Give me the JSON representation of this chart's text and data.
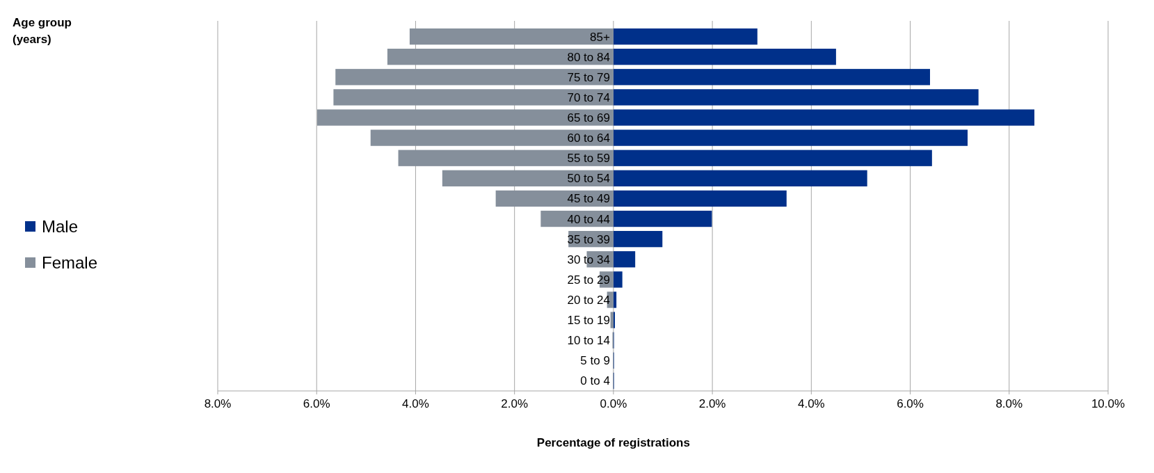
{
  "chart_data": {
    "type": "bar",
    "orientation": "horizontal",
    "stacked": true,
    "annotations": [
      "Age group (years)"
    ],
    "xlabel": "Percentage of registrations",
    "categories": [
      "85+",
      "80 to 84",
      "75 to 79",
      "70 to 74",
      "65 to 69",
      "60 to 64",
      "55 to 59",
      "50 to 54",
      "45 to 49",
      "40 to 44",
      "35 to 39",
      "30 to 34",
      "25 to 29",
      "20 to 24",
      "15 to 19",
      "10 to 14",
      "5 to 9",
      "0 to 4"
    ],
    "series": [
      {
        "name": "Male",
        "color": "#00308a",
        "values": [
          2.91,
          4.5,
          6.4,
          7.38,
          8.51,
          7.16,
          6.44,
          5.13,
          3.5,
          1.99,
          0.99,
          0.44,
          0.18,
          0.06,
          0.03,
          0.01,
          0.01,
          0.01
        ]
      },
      {
        "name": "Female",
        "color": "#858f9b",
        "values": [
          -4.12,
          -4.57,
          -5.62,
          -5.66,
          -5.99,
          -4.91,
          -4.35,
          -3.46,
          -2.38,
          -1.47,
          -0.91,
          -0.54,
          -0.28,
          -0.13,
          -0.06,
          -0.02,
          -0.01,
          -0.01
        ]
      }
    ],
    "xlim": [
      -8,
      10
    ],
    "xticks": [
      {
        "value": -8,
        "label": "8.0%"
      },
      {
        "value": -6,
        "label": "6.0%"
      },
      {
        "value": -4,
        "label": "4.0%"
      },
      {
        "value": -2,
        "label": "2.0%"
      },
      {
        "value": 0,
        "label": "0.0%"
      },
      {
        "value": 2,
        "label": "2.0%"
      },
      {
        "value": 4,
        "label": "4.0%"
      },
      {
        "value": 6,
        "label": "6.0%"
      },
      {
        "value": 8,
        "label": "8.0%"
      },
      {
        "value": 10,
        "label": "10.0%"
      }
    ],
    "grid": "x",
    "legend": "left"
  }
}
